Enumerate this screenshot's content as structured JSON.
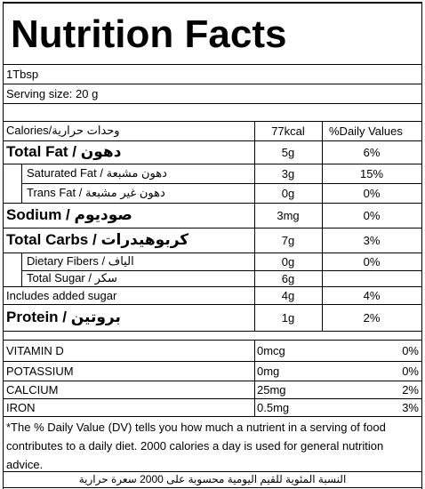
{
  "title": "Nutrition Facts",
  "serving": [
    "1Tbsp",
    "Serving size: 20 g"
  ],
  "header": {
    "label": "Calories/وحدات حرارية",
    "amount": "77kcal",
    "dv": "%Daily Values"
  },
  "nutrients": [
    {
      "label": "Total Fat / دهون",
      "amount": "5g",
      "dv": "6%"
    },
    {
      "label": "Saturated Fat / دهون مشبعة",
      "amount": "3g",
      "dv": "15%"
    },
    {
      "label": "Trans Fat / دهون غير مشبعة",
      "amount": "0g",
      "dv": "0%"
    },
    {
      "label": "Sodium / صوديوم",
      "amount": "3mg",
      "dv": "0%"
    },
    {
      "label": "Total Carbs / كربوهيدرات",
      "amount": "7g",
      "dv": "3%"
    },
    {
      "label": "Dietary Fibers / الياف",
      "amount": "0g",
      "dv": "0%"
    },
    {
      "label": "Total Sugar / سكر",
      "amount": "6g"
    },
    {
      "label": "Includes added sugar",
      "amount": "4g",
      "dv": "4%"
    },
    {
      "label": "Protein / بروتين",
      "amount": "1g",
      "dv": "2%"
    }
  ],
  "vitamins": [
    {
      "label": "VITAMIN D",
      "amount": "0mcg",
      "dv": "0%"
    },
    {
      "label": "POTASSIUM",
      "amount": "0mg",
      "dv": "0%"
    },
    {
      "label": "CALCIUM",
      "amount": "25mg",
      "dv": "2%"
    },
    {
      "label": "IRON",
      "amount": "0.5mg",
      "dv": "3%"
    }
  ],
  "footnote": "*The % Daily Value (DV) tells you how much a nutrient in a serving of food contributes to a daily diet. 2000 calories a day is used for general nutrition advice.",
  "footnote_ar": "النسبة المئوية للقيم اليومية محسوبة على 2000 سعرة حرارية"
}
